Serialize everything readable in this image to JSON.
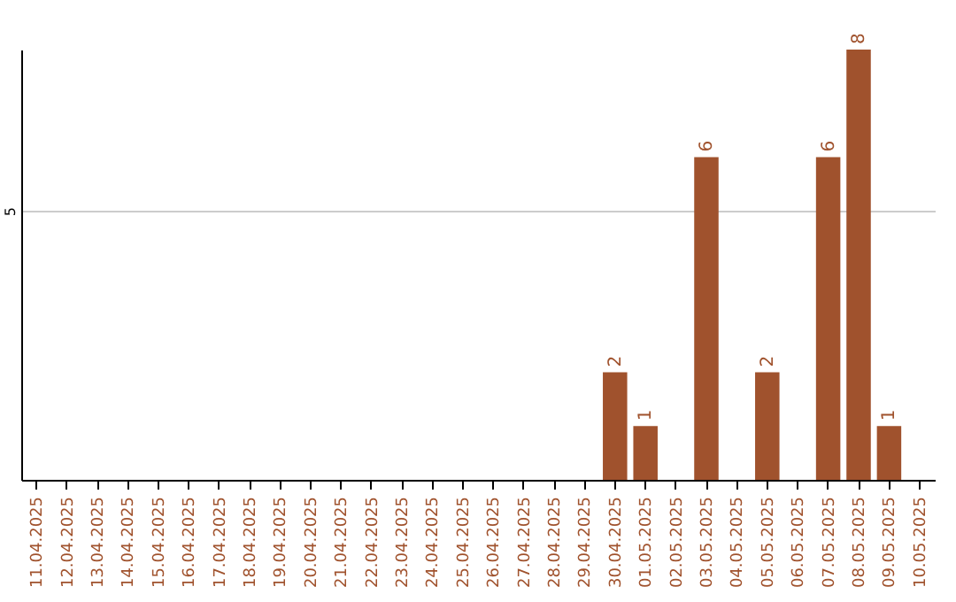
{
  "chart_data": {
    "type": "bar",
    "categories": [
      "11.04.2025",
      "12.04.2025",
      "13.04.2025",
      "14.04.2025",
      "15.04.2025",
      "16.04.2025",
      "17.04.2025",
      "18.04.2025",
      "19.04.2025",
      "20.04.2025",
      "21.04.2025",
      "22.04.2025",
      "23.04.2025",
      "24.04.2025",
      "25.04.2025",
      "26.04.2025",
      "27.04.2025",
      "28.04.2025",
      "29.04.2025",
      "30.04.2025",
      "01.05.2025",
      "02.05.2025",
      "03.05.2025",
      "04.05.2025",
      "05.05.2025",
      "06.05.2025",
      "07.05.2025",
      "08.05.2025",
      "09.05.2025",
      "10.05.2025"
    ],
    "values": [
      null,
      null,
      null,
      null,
      null,
      null,
      null,
      null,
      null,
      null,
      null,
      null,
      null,
      null,
      null,
      null,
      null,
      null,
      null,
      2,
      1,
      null,
      6,
      null,
      2,
      null,
      6,
      8,
      1,
      null
    ],
    "color": "#a0522d",
    "ylim": [
      0,
      8
    ],
    "yticks": [
      5
    ],
    "grid": "y",
    "data_labels": true
  }
}
